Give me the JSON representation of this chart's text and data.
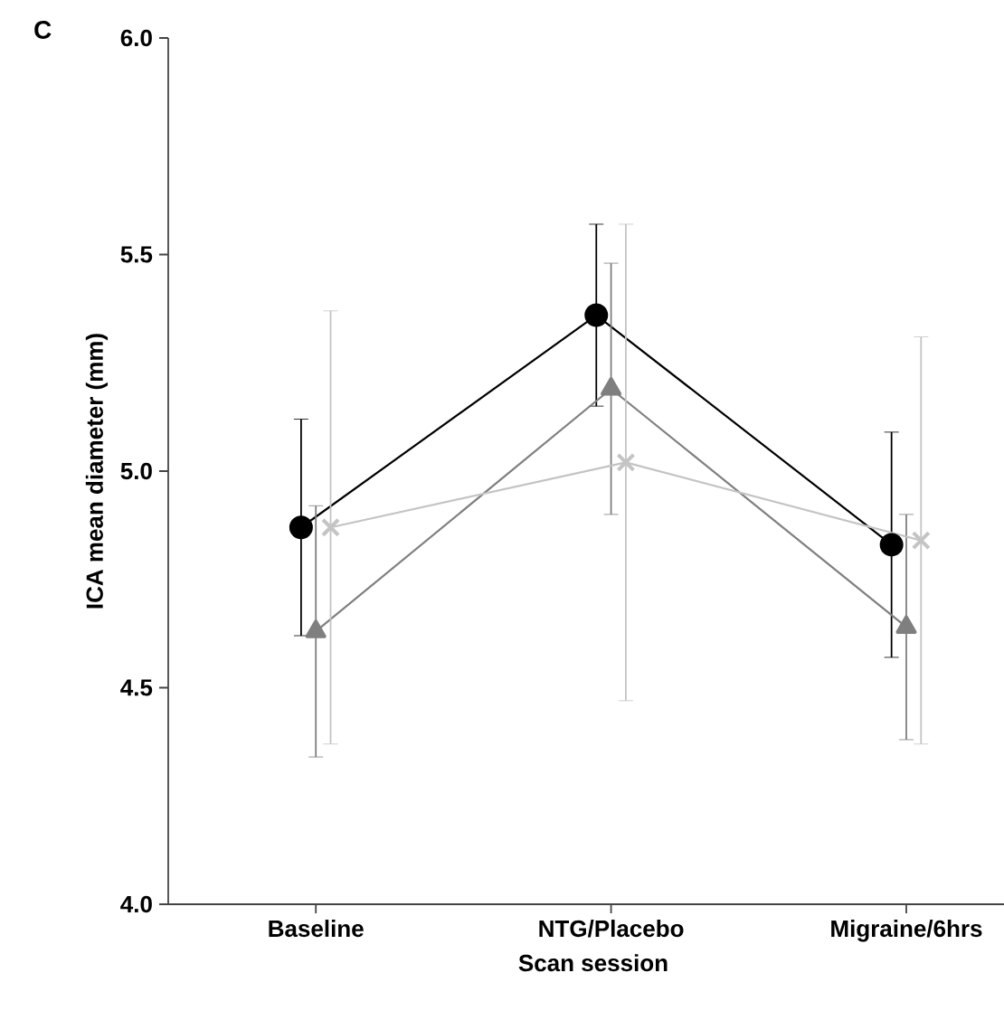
{
  "chart_data": {
    "type": "line",
    "xlabel": "Scan session",
    "ylabel": "ICA mean diameter (mm)",
    "annotations": [
      "C"
    ],
    "categories": [
      "Baseline",
      "NTG/Placebo",
      "Migraine/6hrs"
    ],
    "ylim": [
      4.0,
      6.0
    ],
    "yticks": [
      {
        "value": 4.0,
        "label": "4.0"
      },
      {
        "value": 4.5,
        "label": "4.5"
      },
      {
        "value": 5.0,
        "label": "5.0"
      },
      {
        "value": 5.5,
        "label": "5.5"
      },
      {
        "value": 6.0,
        "label": "6.0"
      }
    ],
    "series": [
      {
        "color": "#000000",
        "marker": "circle",
        "values": [
          4.87,
          5.36,
          4.83
        ],
        "errors": [
          0.25,
          0.21,
          0.26
        ]
      },
      {
        "color": "#7f7f7f",
        "marker": "triangle",
        "values": [
          4.63,
          5.19,
          4.64
        ],
        "errors": [
          0.29,
          0.29,
          0.26
        ]
      },
      {
        "color": "#c4c4c4",
        "marker": "cross",
        "values": [
          4.87,
          5.02,
          4.84
        ],
        "errors": [
          0.5,
          0.55,
          0.47
        ]
      }
    ],
    "grid": false
  }
}
